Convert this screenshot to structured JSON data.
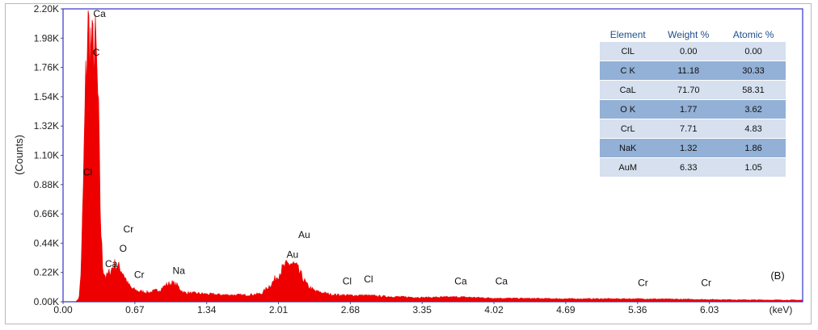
{
  "chart_data": {
    "type": "area",
    "title": "",
    "panel_label": "(B)",
    "ylabel": "(Counts)",
    "xlabel": "(keV)",
    "xlim": [
      0,
      6.9
    ],
    "ylim": [
      0,
      2200
    ],
    "grid": false,
    "colors": {
      "spectrum": "#ee0000",
      "axis_box": "#3333cc",
      "table_header": "#1f4e8c",
      "row_light": "#d6e0ef",
      "row_dark": "#93b0d6"
    },
    "x_ticks": [
      "0.00",
      "0.67",
      "1.34",
      "2.01",
      "2.68",
      "3.35",
      "4.02",
      "4.69",
      "5.36",
      "6.03"
    ],
    "x_tick_values": [
      0,
      0.67,
      1.34,
      2.01,
      2.68,
      3.35,
      4.02,
      4.69,
      5.36,
      6.03
    ],
    "y_ticks": [
      "0.00K",
      "0.22K",
      "0.44K",
      "0.66K",
      "0.88K",
      "1.10K",
      "1.32K",
      "1.54K",
      "1.76K",
      "1.98K",
      "2.20K"
    ],
    "y_tick_values": [
      0,
      220,
      440,
      660,
      880,
      1100,
      1320,
      1540,
      1760,
      1980,
      2200
    ],
    "spectrum": [
      [
        0.0,
        0
      ],
      [
        0.12,
        0
      ],
      [
        0.15,
        30
      ],
      [
        0.17,
        260
      ],
      [
        0.19,
        900
      ],
      [
        0.21,
        1600
      ],
      [
        0.23,
        2050
      ],
      [
        0.25,
        1980
      ],
      [
        0.27,
        1830
      ],
      [
        0.29,
        1940
      ],
      [
        0.31,
        1820
      ],
      [
        0.33,
        1400
      ],
      [
        0.35,
        600
      ],
      [
        0.37,
        260
      ],
      [
        0.4,
        180
      ],
      [
        0.44,
        230
      ],
      [
        0.48,
        280
      ],
      [
        0.52,
        260
      ],
      [
        0.56,
        220
      ],
      [
        0.6,
        140
      ],
      [
        0.64,
        100
      ],
      [
        0.7,
        80
      ],
      [
        0.8,
        70
      ],
      [
        0.9,
        90
      ],
      [
        0.97,
        130
      ],
      [
        1.02,
        140
      ],
      [
        1.07,
        120
      ],
      [
        1.12,
        70
      ],
      [
        1.2,
        65
      ],
      [
        1.34,
        58
      ],
      [
        1.5,
        52
      ],
      [
        1.7,
        50
      ],
      [
        1.85,
        60
      ],
      [
        1.95,
        140
      ],
      [
        2.05,
        250
      ],
      [
        2.12,
        290
      ],
      [
        2.17,
        270
      ],
      [
        2.22,
        200
      ],
      [
        2.28,
        120
      ],
      [
        2.35,
        80
      ],
      [
        2.5,
        55
      ],
      [
        2.62,
        50
      ],
      [
        2.68,
        48
      ],
      [
        2.82,
        48
      ],
      [
        3.0,
        40
      ],
      [
        3.35,
        32
      ],
      [
        3.69,
        36
      ],
      [
        4.02,
        27
      ],
      [
        4.69,
        22
      ],
      [
        5.36,
        22
      ],
      [
        5.95,
        17
      ],
      [
        6.4,
        14
      ],
      [
        6.9,
        12
      ]
    ],
    "annotations": [
      {
        "label": "Ca",
        "x": 0.34,
        "y": 2140
      },
      {
        "label": "C",
        "x": 0.31,
        "y": 1850
      },
      {
        "label": "Cl",
        "x": 0.23,
        "y": 950
      },
      {
        "label": "Cr",
        "x": 0.61,
        "y": 520
      },
      {
        "label": "O",
        "x": 0.56,
        "y": 375
      },
      {
        "label": "Ca",
        "x": 0.45,
        "y": 260
      },
      {
        "label": "Cr",
        "x": 0.71,
        "y": 180
      },
      {
        "label": "Na",
        "x": 1.08,
        "y": 210
      },
      {
        "label": "Au",
        "x": 2.25,
        "y": 480
      },
      {
        "label": "Au",
        "x": 2.14,
        "y": 330
      },
      {
        "label": "Cl",
        "x": 2.65,
        "y": 130
      },
      {
        "label": "Cl",
        "x": 2.85,
        "y": 145
      },
      {
        "label": "Ca",
        "x": 3.71,
        "y": 130
      },
      {
        "label": "Ca",
        "x": 4.09,
        "y": 130
      },
      {
        "label": "Cr",
        "x": 5.41,
        "y": 118
      },
      {
        "label": "Cr",
        "x": 6.0,
        "y": 118
      }
    ],
    "table": {
      "headers": [
        "Element",
        "Weight %",
        "Atomic %"
      ],
      "rows": [
        [
          "ClL",
          "0.00",
          "0.00"
        ],
        [
          "C K",
          "11.18",
          "30.33"
        ],
        [
          "CaL",
          "71.70",
          "58.31"
        ],
        [
          "O K",
          "1.77",
          "3.62"
        ],
        [
          "CrL",
          "7.71",
          "4.83"
        ],
        [
          "NaK",
          "1.32",
          "1.86"
        ],
        [
          "AuM",
          "6.33",
          "1.05"
        ]
      ]
    }
  }
}
